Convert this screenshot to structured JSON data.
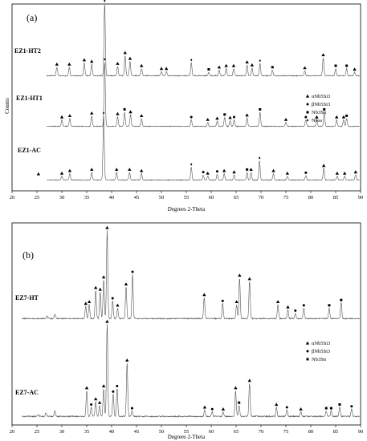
{
  "chart_data": [
    {
      "type": "line",
      "panel_label": "(a)",
      "xlabel": "Degrees 2-Theta",
      "ylabel": "Counts",
      "xlim": [
        20,
        90
      ],
      "x_ticks": [
        20,
        25,
        30,
        35,
        40,
        45,
        50,
        55,
        60,
        65,
        70,
        75,
        80,
        85,
        90
      ],
      "grid": false,
      "legend_position": "right",
      "legend": [
        {
          "symbol": "triangle",
          "label": "αNb5Si3"
        },
        {
          "symbol": "circle",
          "label": "βNb5Si3"
        },
        {
          "symbol": "square",
          "label": "Nb3Sn"
        },
        {
          "symbol": "diamond",
          "label": "Nbss"
        }
      ],
      "series": [
        {
          "name": "EZ1-HT2",
          "peaks": [
            [
              29,
              0.12,
              "triangle"
            ],
            [
              31.5,
              0.12,
              "triangle"
            ],
            [
              34.5,
              0.18,
              "triangle"
            ],
            [
              36,
              0.16,
              "triangle"
            ],
            [
              38.6,
              1.0,
              "diamond"
            ],
            [
              41.2,
              0.13,
              "triangle"
            ],
            [
              42.7,
              0.28,
              "triangle"
            ],
            [
              43.7,
              0.2,
              "triangle"
            ],
            [
              46,
              0.1,
              "triangle"
            ],
            [
              50,
              0.06,
              "triangle"
            ],
            [
              51,
              0.06,
              "triangle"
            ],
            [
              56,
              0.18,
              "diamond"
            ],
            [
              59.5,
              0.05,
              "square"
            ],
            [
              61.6,
              0.08,
              "triangle"
            ],
            [
              63,
              0.1,
              "triangle"
            ],
            [
              64.5,
              0.1,
              "triangle"
            ],
            [
              67.2,
              0.15,
              "triangle"
            ],
            [
              68.2,
              0.11,
              "triangle"
            ],
            [
              69.8,
              0.17,
              "diamond"
            ],
            [
              72.3,
              0.08,
              "square"
            ],
            [
              78.8,
              0.07,
              "triangle"
            ],
            [
              82.5,
              0.25,
              "triangle"
            ],
            [
              85,
              0.1,
              "square"
            ],
            [
              87.2,
              0.1,
              "square"
            ],
            [
              88.8,
              0.05,
              "triangle"
            ]
          ]
        },
        {
          "name": "EZ1-HT1",
          "peaks": [
            [
              30,
              0.1,
              "triangle"
            ],
            [
              31.6,
              0.12,
              "triangle"
            ],
            [
              36,
              0.16,
              "triangle"
            ],
            [
              38.6,
              1.0,
              "diamond"
            ],
            [
              41.2,
              0.15,
              "triangle"
            ],
            [
              42.6,
              0.22,
              "square"
            ],
            [
              43.8,
              0.18,
              "triangle"
            ],
            [
              46,
              0.12,
              "triangle"
            ],
            [
              56,
              0.1,
              "circle"
            ],
            [
              59.3,
              0.06,
              "triangle"
            ],
            [
              61.2,
              0.08,
              "triangle"
            ],
            [
              62.7,
              0.14,
              "square"
            ],
            [
              63.8,
              0.09,
              "triangle"
            ],
            [
              64.6,
              0.1,
              "circle"
            ],
            [
              67.2,
              0.13,
              "triangle"
            ],
            [
              69.8,
              0.22,
              "square"
            ],
            [
              75,
              0.06,
              "triangle"
            ],
            [
              79,
              0.1,
              "circle"
            ],
            [
              81.2,
              0.1,
              "triangle"
            ],
            [
              82.7,
              0.22,
              "square"
            ],
            [
              85.2,
              0.1,
              "triangle"
            ],
            [
              86.6,
              0.1,
              "triangle"
            ],
            [
              87.2,
              0.12,
              "square"
            ]
          ]
        },
        {
          "name": "EZ1-AC",
          "peaks": [
            [
              25.3,
              0.05,
              "triangle"
            ],
            [
              30,
              0.06,
              "triangle"
            ],
            [
              31.6,
              0.1,
              "triangle"
            ],
            [
              36,
              0.12,
              "triangle"
            ],
            [
              38.4,
              1.0,
              "diamond"
            ],
            [
              41,
              0.12,
              "triangle"
            ],
            [
              43.6,
              0.12,
              "triangle"
            ],
            [
              46,
              0.1,
              "triangle"
            ],
            [
              56,
              0.2,
              "diamond"
            ],
            [
              58.4,
              0.08,
              "circle"
            ],
            [
              59.3,
              0.06,
              "triangle"
            ],
            [
              61.2,
              0.09,
              "circle"
            ],
            [
              62.6,
              0.1,
              "triangle"
            ],
            [
              64.6,
              0.08,
              "triangle"
            ],
            [
              67.2,
              0.12,
              "square"
            ],
            [
              68,
              0.12,
              "triangle"
            ],
            [
              69.7,
              0.3,
              "diamond"
            ],
            [
              72.5,
              0.1,
              "triangle"
            ],
            [
              75.3,
              0.06,
              "triangle"
            ],
            [
              79,
              0.07,
              "circle"
            ],
            [
              82.6,
              0.18,
              "triangle"
            ],
            [
              85.3,
              0.06,
              "triangle"
            ],
            [
              86.8,
              0.06,
              "triangle"
            ],
            [
              89,
              0.08,
              "triangle"
            ]
          ]
        }
      ]
    },
    {
      "type": "line",
      "panel_label": "(b)",
      "xlabel": "Degrees 2-Theta",
      "ylabel": "",
      "xlim": [
        20,
        90
      ],
      "x_ticks": [
        20,
        25,
        30,
        35,
        40,
        45,
        50,
        55,
        60,
        65,
        70,
        75,
        80,
        85,
        90
      ],
      "grid": false,
      "legend_position": "right",
      "legend": [
        {
          "symbol": "triangle",
          "label": "αNb5Si3"
        },
        {
          "symbol": "circle",
          "label": "βNb5Si3"
        },
        {
          "symbol": "square",
          "label": "Nb3Sn"
        }
      ],
      "series": [
        {
          "name": "EZ7-HT",
          "peaks": [
            [
              27,
              0.03,
              ""
            ],
            [
              28.6,
              0.05,
              ""
            ],
            [
              34.8,
              0.14,
              "triangle"
            ],
            [
              35.5,
              0.16,
              "triangle"
            ],
            [
              36.8,
              0.32,
              "triangle"
            ],
            [
              37.7,
              0.3,
              "triangle"
            ],
            [
              38.4,
              0.44,
              "triangle"
            ],
            [
              39.1,
              1.0,
              "triangle"
            ],
            [
              40.2,
              0.2,
              "circle"
            ],
            [
              41.2,
              0.12,
              "triangle"
            ],
            [
              42.9,
              0.36,
              "triangle"
            ],
            [
              44.2,
              0.5,
              "circle"
            ],
            [
              58.6,
              0.24,
              "triangle"
            ],
            [
              62.3,
              0.17,
              "circle"
            ],
            [
              65.1,
              0.16,
              "triangle"
            ],
            [
              65.7,
              0.46,
              "triangle"
            ],
            [
              67.7,
              0.42,
              "triangle"
            ],
            [
              73.4,
              0.16,
              "triangle"
            ],
            [
              75.4,
              0.1,
              "triangle"
            ],
            [
              76.9,
              0.06,
              "circle"
            ],
            [
              78.6,
              0.12,
              "circle"
            ],
            [
              83.7,
              0.12,
              "square"
            ],
            [
              86.1,
              0.18,
              "square"
            ]
          ]
        },
        {
          "name": "EZ7-AC",
          "peaks": [
            [
              25.3,
              0.02,
              ""
            ],
            [
              26.8,
              0.04,
              ""
            ],
            [
              28.6,
              0.06,
              ""
            ],
            [
              35,
              0.28,
              "triangle"
            ],
            [
              35.9,
              0.1,
              "circle"
            ],
            [
              36.8,
              0.16,
              "triangle"
            ],
            [
              37.6,
              0.12,
              "triangle"
            ],
            [
              38.4,
              0.3,
              "triangle"
            ],
            [
              39.1,
              1.0,
              "triangle"
            ],
            [
              40.3,
              0.24,
              "circle"
            ],
            [
              41.1,
              0.3,
              "circle"
            ],
            [
              43.1,
              0.58,
              "triangle"
            ],
            [
              44.1,
              0.06,
              "circle"
            ],
            [
              58.7,
              0.07,
              "triangle"
            ],
            [
              60.2,
              0.05,
              "circle"
            ],
            [
              62.4,
              0.05,
              "triangle"
            ],
            [
              64.9,
              0.28,
              "triangle"
            ],
            [
              65.6,
              0.12,
              "square"
            ],
            [
              67.7,
              0.36,
              "triangle"
            ],
            [
              73.1,
              0.1,
              "triangle"
            ],
            [
              75.2,
              0.07,
              "circle"
            ],
            [
              78,
              0.05,
              "triangle"
            ],
            [
              83.1,
              0.06,
              "square"
            ],
            [
              84.1,
              0.06,
              "square"
            ],
            [
              85.8,
              0.1,
              "square"
            ],
            [
              88.2,
              0.08,
              "circle"
            ]
          ]
        }
      ]
    }
  ]
}
